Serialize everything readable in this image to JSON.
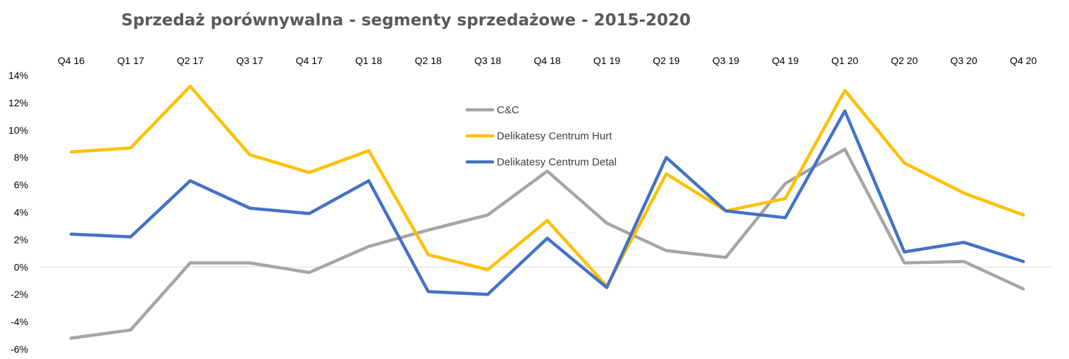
{
  "chart_data": {
    "type": "line",
    "title": "Sprzedaż porównywalna - segmenty sprzedażowe - 2015-2020",
    "xlabel": "",
    "ylabel": "",
    "categories": [
      "Q4 16",
      "Q1 17",
      "Q2 17",
      "Q3 17",
      "Q4 17",
      "Q1 18",
      "Q2 18",
      "Q3 18",
      "Q4 18",
      "Q1 19",
      "Q2 19",
      "Q3 19",
      "Q4 19",
      "Q1 20",
      "Q2 20",
      "Q3 20",
      "Q4 20"
    ],
    "ylim": [
      -6,
      14
    ],
    "yticks": [
      -6,
      -4,
      -2,
      0,
      2,
      4,
      6,
      8,
      10,
      12,
      14
    ],
    "ytick_labels": [
      "-6%",
      "-4%",
      "-2%",
      "0%",
      "2%",
      "4%",
      "6%",
      "8%",
      "10%",
      "12%",
      "14%"
    ],
    "x_axis_position": "top",
    "grid": false,
    "legend_position": "center",
    "series": [
      {
        "name": "C&C",
        "color": "#a5a5a5",
        "values": [
          -5.2,
          -4.6,
          0.3,
          0.3,
          -0.4,
          1.5,
          2.7,
          3.8,
          7.0,
          3.2,
          1.2,
          0.7,
          6.1,
          8.6,
          0.3,
          0.4,
          -1.6
        ]
      },
      {
        "name": "Delikatesy Centrum Hurt",
        "color": "#ffc000",
        "values": [
          8.4,
          8.7,
          13.2,
          8.2,
          6.9,
          8.5,
          0.9,
          -0.2,
          3.4,
          -1.4,
          6.8,
          4.1,
          5.0,
          12.9,
          7.6,
          5.4,
          3.8
        ]
      },
      {
        "name": "Delikatesy Centrum Detal",
        "color": "#4472c4",
        "values": [
          2.4,
          2.2,
          6.3,
          4.3,
          3.9,
          6.3,
          -1.8,
          -2.0,
          2.1,
          -1.5,
          8.0,
          4.1,
          3.6,
          11.4,
          1.1,
          1.8,
          0.4
        ]
      }
    ]
  }
}
